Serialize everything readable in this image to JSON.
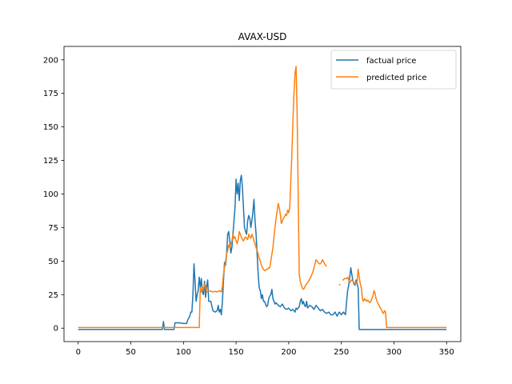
{
  "chart_data": {
    "type": "line",
    "title": "AVAX-USD",
    "xlabel": "",
    "ylabel": "",
    "xlim": [
      -13.5,
      363.5
    ],
    "ylim": [
      -10,
      210
    ],
    "xticks": [
      0,
      50,
      100,
      150,
      200,
      250,
      300,
      350
    ],
    "yticks": [
      0,
      25,
      50,
      75,
      100,
      125,
      150,
      175,
      200
    ],
    "xtick_labels": [
      "0",
      "50",
      "100",
      "150",
      "200",
      "250",
      "300",
      "350"
    ],
    "ytick_labels": [
      "0",
      "25",
      "50",
      "75",
      "100",
      "125",
      "150",
      "175",
      "200"
    ],
    "grid": false,
    "legend_position": "upper right",
    "series": [
      {
        "name": "factual price",
        "color": "#1f77b4",
        "points": [
          [
            0,
            -1
          ],
          [
            80,
            -1
          ],
          [
            81,
            5
          ],
          [
            82,
            -1
          ],
          [
            91,
            -1
          ],
          [
            92,
            4
          ],
          [
            96,
            4
          ],
          [
            100,
            3.5
          ],
          [
            103,
            3.5
          ],
          [
            104,
            6
          ],
          [
            106,
            9
          ],
          [
            107,
            12
          ],
          [
            108,
            12
          ],
          [
            109,
            25
          ],
          [
            110,
            48
          ],
          [
            111,
            35
          ],
          [
            112,
            20
          ],
          [
            113,
            25
          ],
          [
            114,
            28
          ],
          [
            115,
            38
          ],
          [
            116,
            30
          ],
          [
            117,
            37
          ],
          [
            118,
            27
          ],
          [
            119,
            25
          ],
          [
            120,
            35
          ],
          [
            121,
            23
          ],
          [
            122,
            31
          ],
          [
            123,
            36
          ],
          [
            124,
            20
          ],
          [
            126,
            20
          ],
          [
            128,
            13
          ],
          [
            130,
            12
          ],
          [
            132,
            13
          ],
          [
            133,
            17
          ],
          [
            134,
            12
          ],
          [
            135,
            14
          ],
          [
            136,
            10
          ],
          [
            137,
            20
          ],
          [
            138,
            35
          ],
          [
            139,
            49
          ],
          [
            140,
            47
          ],
          [
            141,
            55
          ],
          [
            142,
            70
          ],
          [
            143,
            72
          ],
          [
            144,
            65
          ],
          [
            145,
            56
          ],
          [
            146,
            60
          ],
          [
            147,
            70
          ],
          [
            148,
            80
          ],
          [
            149,
            90
          ],
          [
            150,
            111
          ],
          [
            151,
            100
          ],
          [
            152,
            108
          ],
          [
            153,
            95
          ],
          [
            154,
            110
          ],
          [
            155,
            114
          ],
          [
            156,
            105
          ],
          [
            157,
            90
          ],
          [
            158,
            75
          ],
          [
            159,
            72
          ],
          [
            160,
            70
          ],
          [
            161,
            80
          ],
          [
            162,
            84
          ],
          [
            163,
            82
          ],
          [
            164,
            75
          ],
          [
            165,
            80
          ],
          [
            166,
            87
          ],
          [
            167,
            96
          ],
          [
            168,
            80
          ],
          [
            169,
            70
          ],
          [
            170,
            55
          ],
          [
            171,
            40
          ],
          [
            172,
            30
          ],
          [
            173,
            28
          ],
          [
            174,
            22
          ],
          [
            175,
            25
          ],
          [
            176,
            20
          ],
          [
            177,
            20
          ],
          [
            178,
            18
          ],
          [
            179,
            16
          ],
          [
            180,
            17
          ],
          [
            181,
            22
          ],
          [
            182,
            24
          ],
          [
            183,
            25
          ],
          [
            184,
            29
          ],
          [
            185,
            22
          ],
          [
            186,
            20
          ],
          [
            187,
            18
          ],
          [
            188,
            19
          ],
          [
            190,
            17
          ],
          [
            192,
            16
          ],
          [
            194,
            18
          ],
          [
            196,
            15
          ],
          [
            198,
            14
          ],
          [
            200,
            15
          ],
          [
            202,
            13
          ],
          [
            204,
            14
          ],
          [
            206,
            12
          ],
          [
            207,
            15
          ],
          [
            208,
            14
          ],
          [
            209,
            15
          ],
          [
            210,
            16
          ],
          [
            211,
            20
          ],
          [
            212,
            22
          ],
          [
            213,
            18
          ],
          [
            214,
            20
          ],
          [
            215,
            17
          ],
          [
            216,
            16
          ],
          [
            217,
            20
          ],
          [
            218,
            15
          ],
          [
            220,
            17
          ],
          [
            222,
            16
          ],
          [
            224,
            14
          ],
          [
            226,
            17
          ],
          [
            228,
            15
          ],
          [
            230,
            13
          ],
          [
            232,
            14
          ],
          [
            234,
            12
          ],
          [
            236,
            11
          ],
          [
            238,
            12
          ],
          [
            240,
            10
          ],
          [
            242,
            10
          ],
          [
            244,
            12
          ],
          [
            246,
            9
          ],
          [
            248,
            12
          ],
          [
            250,
            10
          ],
          [
            252,
            12
          ],
          [
            254,
            10
          ],
          [
            255,
            20
          ],
          [
            256,
            28
          ],
          [
            257,
            32
          ],
          [
            258,
            38
          ],
          [
            259,
            45
          ],
          [
            260,
            40
          ],
          [
            261,
            35
          ],
          [
            262,
            33
          ],
          [
            263,
            32
          ],
          [
            264,
            36
          ],
          [
            265,
            33
          ],
          [
            266,
            30
          ],
          [
            267,
            -1
          ],
          [
            350,
            -1
          ]
        ]
      },
      {
        "name": "predicted price",
        "color": "#ff7f0e",
        "points": [
          [
            0,
            0.5
          ],
          [
            115,
            0.5
          ],
          [
            116,
            30
          ],
          [
            117,
            27
          ],
          [
            118,
            31
          ],
          [
            119,
            28
          ],
          [
            120,
            33
          ],
          [
            121,
            32
          ],
          [
            122,
            27
          ],
          [
            124,
            28
          ],
          [
            126,
            27.5
          ],
          [
            128,
            27
          ],
          [
            130,
            27.5
          ],
          [
            132,
            27
          ],
          [
            134,
            28
          ],
          [
            136,
            27
          ],
          [
            137,
            31
          ],
          [
            138,
            40
          ],
          [
            139,
            45
          ],
          [
            140,
            50
          ],
          [
            141,
            55
          ],
          [
            142,
            58
          ],
          [
            143,
            62
          ],
          [
            144,
            60
          ],
          [
            145,
            63
          ],
          [
            146,
            65
          ],
          [
            147,
            70
          ],
          [
            148,
            67
          ],
          [
            149,
            68
          ],
          [
            150,
            65
          ],
          [
            151,
            63
          ],
          [
            152,
            66
          ],
          [
            153,
            72
          ],
          [
            154,
            70
          ],
          [
            155,
            68
          ],
          [
            156,
            66
          ],
          [
            157,
            65
          ],
          [
            158,
            67
          ],
          [
            159,
            68
          ],
          [
            160,
            67
          ],
          [
            161,
            66
          ],
          [
            162,
            70
          ],
          [
            163,
            68
          ],
          [
            164,
            67
          ],
          [
            165,
            70
          ],
          [
            166,
            68
          ],
          [
            167,
            65
          ],
          [
            168,
            63
          ],
          [
            169,
            60
          ],
          [
            170,
            58
          ],
          [
            171,
            55
          ],
          [
            172,
            52
          ],
          [
            173,
            50
          ],
          [
            174,
            47
          ],
          [
            175,
            45
          ],
          [
            176,
            44
          ],
          [
            177,
            43
          ],
          [
            178,
            43
          ],
          [
            179,
            44
          ],
          [
            180,
            44
          ],
          [
            181,
            45
          ],
          [
            182,
            45
          ],
          [
            184,
            55
          ],
          [
            185,
            60
          ],
          [
            186,
            68
          ],
          [
            187,
            75
          ],
          [
            188,
            82
          ],
          [
            189,
            87
          ],
          [
            190,
            93
          ],
          [
            191,
            90
          ],
          [
            192,
            85
          ],
          [
            193,
            78
          ],
          [
            194,
            80
          ],
          [
            195,
            82
          ],
          [
            196,
            83
          ],
          [
            197,
            85
          ],
          [
            198,
            84
          ],
          [
            199,
            88
          ],
          [
            200,
            86
          ],
          [
            201,
            90
          ],
          [
            202,
            110
          ],
          [
            203,
            130
          ],
          [
            204,
            155
          ],
          [
            205,
            175
          ],
          [
            206,
            190
          ],
          [
            207,
            195
          ],
          [
            208,
            160
          ],
          [
            209,
            100
          ],
          [
            210,
            40
          ],
          [
            211,
            35
          ],
          [
            212,
            32
          ],
          [
            213,
            30
          ],
          [
            214,
            29
          ],
          [
            215,
            30
          ],
          [
            216,
            32
          ],
          [
            217,
            33
          ],
          [
            218,
            34
          ],
          [
            219,
            35
          ],
          [
            220,
            37
          ],
          [
            221,
            38
          ],
          [
            222,
            40
          ],
          [
            223,
            42
          ],
          [
            224,
            45
          ],
          [
            225,
            48
          ],
          [
            226,
            51
          ],
          [
            227,
            50
          ],
          [
            228,
            49
          ],
          [
            229,
            48
          ],
          [
            230,
            48
          ],
          [
            231,
            49
          ],
          [
            232,
            51
          ],
          [
            233,
            50
          ],
          [
            234,
            48
          ],
          [
            235,
            47
          ],
          [
            236,
            46
          ],
          null,
          [
            248,
            33
          ],
          [
            249,
            32
          ],
          null,
          [
            251,
            36
          ],
          [
            252,
            36
          ],
          [
            253,
            37
          ],
          [
            254,
            37
          ],
          [
            255,
            37
          ],
          [
            256,
            38
          ],
          [
            257,
            36
          ],
          [
            258,
            34
          ],
          [
            259,
            35
          ],
          [
            260,
            36
          ],
          [
            261,
            35
          ],
          [
            262,
            34
          ],
          [
            263,
            33
          ],
          [
            264,
            34
          ],
          [
            265,
            35
          ],
          [
            266,
            44
          ],
          [
            267,
            38
          ],
          [
            268,
            33
          ],
          [
            269,
            30
          ],
          [
            270,
            22
          ],
          [
            271,
            20
          ],
          [
            272,
            22
          ],
          [
            273,
            21
          ],
          [
            274,
            20
          ],
          [
            275,
            21
          ],
          [
            276,
            20
          ],
          [
            277,
            19
          ],
          [
            278,
            20
          ],
          [
            279,
            22
          ],
          [
            280,
            24
          ],
          [
            281,
            28
          ],
          [
            282,
            26
          ],
          [
            283,
            22
          ],
          [
            284,
            20
          ],
          [
            285,
            18
          ],
          [
            286,
            17
          ],
          [
            287,
            15
          ],
          [
            288,
            14
          ],
          [
            289,
            12
          ],
          [
            290,
            11
          ],
          [
            291,
            13
          ],
          [
            292,
            12
          ],
          [
            293,
            0.5
          ],
          [
            350,
            0.5
          ]
        ]
      }
    ]
  }
}
